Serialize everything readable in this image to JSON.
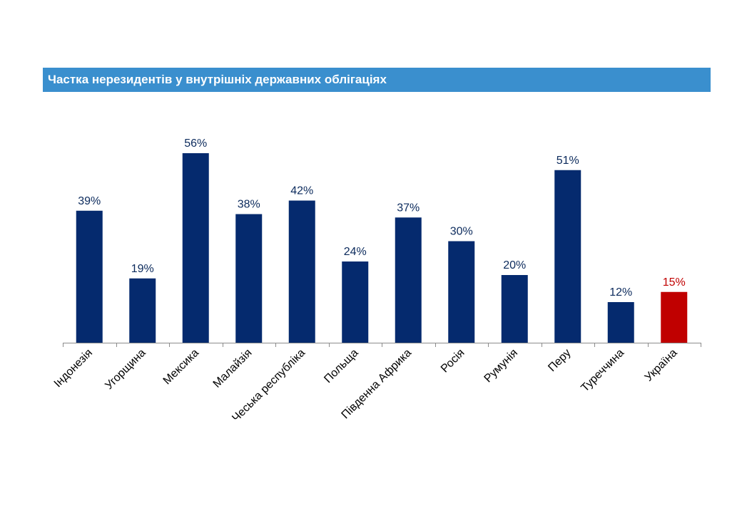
{
  "chart_data": {
    "type": "bar",
    "title": "Частка нерезидентів у внутрішніх державних облігаціях",
    "categories": [
      "Індонезія",
      "Угорщина",
      "Мексика",
      "Малайзія",
      "Чеська республіка",
      "Польща",
      "Південна Африка",
      "Росія",
      "Румунія",
      "Перу",
      "Туреччина",
      "Україна"
    ],
    "values": [
      39,
      19,
      56,
      38,
      42,
      24,
      37,
      30,
      20,
      51,
      12,
      15
    ],
    "value_labels": [
      "39%",
      "19%",
      "56%",
      "38%",
      "42%",
      "24%",
      "37%",
      "30%",
      "20%",
      "51%",
      "12%",
      "15%"
    ],
    "highlight_category": "Україна",
    "ylim": [
      0,
      56
    ],
    "grid": false,
    "xlabel": "",
    "ylabel": ""
  },
  "colors": {
    "title_bar": "#3a8fce",
    "bar": "#052a6e",
    "bar_highlight": "#c00000",
    "label": "#0b2a5c",
    "label_highlight": "#c00000"
  }
}
